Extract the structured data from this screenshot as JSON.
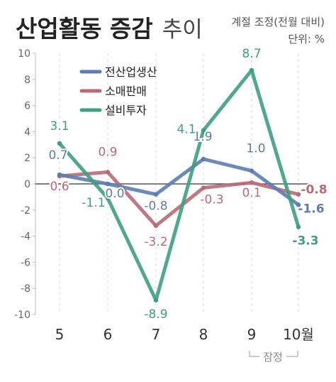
{
  "chart_data": {
    "type": "line",
    "title": "산업활동 증감",
    "title_suffix": "추이",
    "note_line1": "계절 조정(전월 대비)",
    "note_line2": "단위: %",
    "categories": [
      "5",
      "6",
      "7",
      "8",
      "9",
      "10월"
    ],
    "ylim": [
      -10,
      10
    ],
    "yticks": [
      "10",
      "8",
      "6",
      "4",
      "2",
      "0",
      "-2",
      "-4",
      "-6",
      "-8",
      "-10"
    ],
    "grid": "vertical dashed",
    "legend_position": "top-left",
    "preliminary_label": "잠정",
    "series": [
      {
        "name": "전산업생산",
        "color": "#5b7db3",
        "values": [
          0.7,
          0.0,
          -0.8,
          1.9,
          1.0,
          -1.6
        ],
        "labels": [
          "0.7",
          "0.0",
          "-0.8",
          "1.9",
          "1.0",
          "-1.6"
        ]
      },
      {
        "name": "소매판매",
        "color": "#b86a78",
        "values": [
          0.6,
          0.9,
          -3.2,
          -0.3,
          0.1,
          -0.8
        ],
        "labels": [
          "0.6",
          "0.9",
          "-3.2",
          "-0.3",
          "0.1",
          "-0.8"
        ]
      },
      {
        "name": "설비투자",
        "color": "#3e9e82",
        "values": [
          3.1,
          -1.1,
          -8.9,
          4.1,
          8.7,
          -3.3
        ],
        "labels": [
          "3.1",
          "-1.1",
          "-8.9",
          "4.1",
          "8.7",
          "-3.3"
        ]
      }
    ]
  }
}
